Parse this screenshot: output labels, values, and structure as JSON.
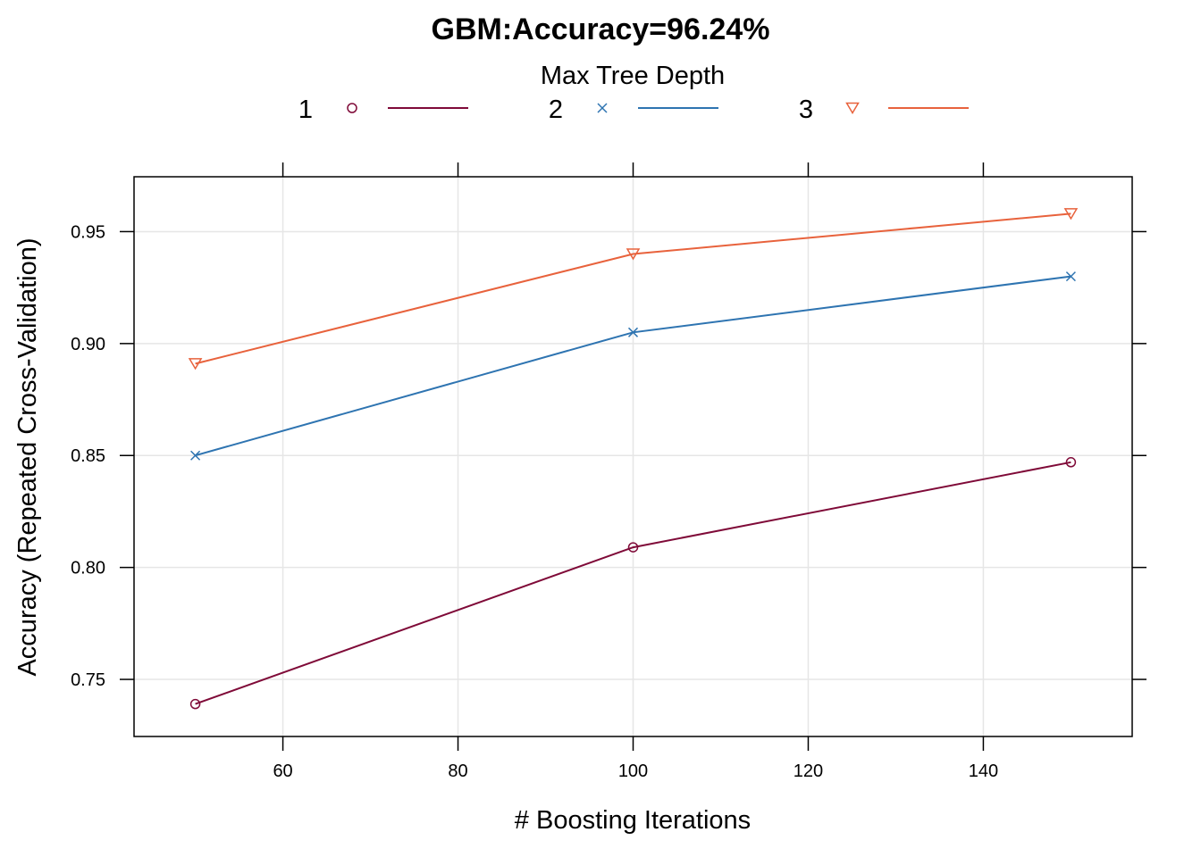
{
  "chart_data": {
    "type": "line",
    "title": "GBM:Accuracy=96.24%",
    "xlabel": "# Boosting Iterations",
    "ylabel": "Accuracy (Repeated Cross-Validation)",
    "legend_title": "Max Tree Depth",
    "legend_position": "top",
    "grid": true,
    "xlim": [
      43,
      157
    ],
    "ylim": [
      0.7245,
      0.9745
    ],
    "x_ticks": [
      60,
      80,
      100,
      120,
      140
    ],
    "y_ticks": [
      0.75,
      0.8,
      0.85,
      0.9,
      0.95
    ],
    "x_tick_labels": [
      "60",
      "80",
      "100",
      "120",
      "140"
    ],
    "y_tick_labels": [
      "0.75",
      "0.80",
      "0.85",
      "0.90",
      "0.95"
    ],
    "x": [
      50,
      100,
      150
    ],
    "series": [
      {
        "name": "1",
        "marker": "circle",
        "color": "#7f0a38",
        "values": [
          0.739,
          0.809,
          0.847
        ]
      },
      {
        "name": "2",
        "marker": "x",
        "color": "#2e74b1",
        "values": [
          0.85,
          0.905,
          0.93
        ]
      },
      {
        "name": "3",
        "marker": "triangle-down",
        "color": "#e8623c",
        "values": [
          0.891,
          0.94,
          0.958
        ]
      }
    ]
  }
}
